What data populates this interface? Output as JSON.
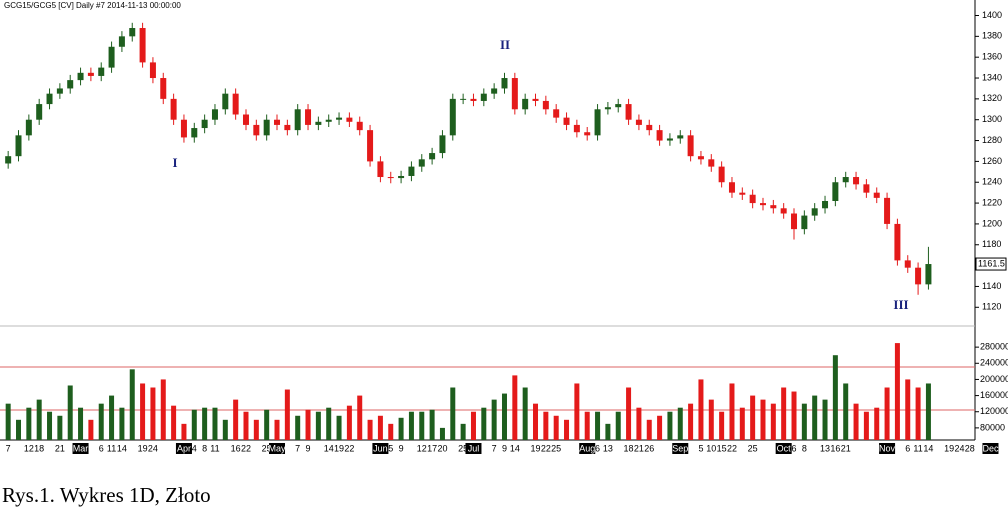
{
  "chart_data": {
    "type": "candlestick",
    "title": "GCG15/GCG5 [CV]  Daily  #7 2014-11-13 00:00:00",
    "categories": [
      "7",
      null,
      "12",
      "18",
      null,
      "21",
      null,
      "Mar",
      null,
      "6",
      "11",
      "14",
      null,
      "19",
      "24",
      null,
      null,
      "Apr",
      "4",
      "8",
      "11",
      null,
      "16",
      "22",
      null,
      "25",
      "May",
      null,
      "7",
      "9",
      null,
      "14",
      "19",
      "22",
      null,
      null,
      "Jun",
      "5",
      "9",
      null,
      "12",
      "17",
      "20",
      null,
      "25",
      "Jul",
      null,
      "7",
      "9",
      "14",
      null,
      "19",
      "22",
      "25",
      null,
      null,
      "Aug",
      "6",
      "13",
      null,
      "18",
      "21",
      "26",
      null,
      null,
      "Sep",
      null,
      "5",
      "10",
      "15",
      "22",
      null,
      "25",
      null,
      null,
      "Oct",
      "6",
      "8",
      null,
      "13",
      "16",
      "21",
      null,
      null,
      null,
      "Nov",
      null,
      "6",
      "11",
      "14",
      null,
      "19",
      "24",
      "28",
      null,
      "Dec"
    ],
    "open": [
      1258,
      1265,
      1285,
      1300,
      1315,
      1325,
      1330,
      1338,
      1345,
      1342,
      1350,
      1370,
      1380,
      1388,
      1355,
      1340,
      1320,
      1300,
      1283,
      1292,
      1300,
      1310,
      1325,
      1305,
      1295,
      1285,
      1300,
      1295,
      1290,
      1310,
      1295,
      1298,
      1300,
      1302,
      1298,
      1290,
      1260,
      1245,
      1244,
      1246,
      1255,
      1262,
      1268,
      1285,
      1320,
      1320,
      1318,
      1325,
      1330,
      1340,
      1310,
      1320,
      1318,
      1310,
      1302,
      1295,
      1288,
      1285,
      1310,
      1312,
      1315,
      1300,
      1295,
      1290,
      1280,
      1282,
      1285,
      1265,
      1262,
      1255,
      1240,
      1230,
      1228,
      1220,
      1218,
      1215,
      1210,
      1195,
      1208,
      1215,
      1222,
      1240,
      1245,
      1238,
      1230,
      1225,
      1200,
      1165,
      1158,
      1142,
      null,
      null,
      null,
      null,
      null,
      null
    ],
    "high": [
      1270,
      1290,
      1305,
      1320,
      1330,
      1335,
      1343,
      1350,
      1350,
      1355,
      1375,
      1385,
      1393,
      1393,
      1360,
      1345,
      1325,
      1305,
      1297,
      1305,
      1315,
      1330,
      1330,
      1310,
      1300,
      1305,
      1305,
      1300,
      1315,
      1315,
      1303,
      1305,
      1307,
      1307,
      1303,
      1295,
      1265,
      1250,
      1251,
      1260,
      1267,
      1273,
      1290,
      1325,
      1325,
      1325,
      1330,
      1335,
      1345,
      1345,
      1325,
      1325,
      1323,
      1315,
      1307,
      1300,
      1293,
      1315,
      1317,
      1320,
      1320,
      1305,
      1300,
      1295,
      1287,
      1290,
      1290,
      1270,
      1267,
      1260,
      1245,
      1235,
      1233,
      1225,
      1223,
      1220,
      1215,
      1213,
      1220,
      1227,
      1245,
      1250,
      1250,
      1243,
      1235,
      1230,
      1205,
      1170,
      1163,
      1178,
      null,
      null,
      null,
      null,
      null,
      null
    ],
    "low": [
      1253,
      1260,
      1280,
      1295,
      1310,
      1320,
      1325,
      1333,
      1337,
      1337,
      1345,
      1365,
      1375,
      1350,
      1335,
      1315,
      1295,
      1278,
      1278,
      1287,
      1295,
      1305,
      1300,
      1290,
      1280,
      1280,
      1290,
      1285,
      1285,
      1290,
      1290,
      1293,
      1295,
      1293,
      1285,
      1255,
      1240,
      1239,
      1239,
      1241,
      1250,
      1257,
      1263,
      1280,
      1315,
      1313,
      1313,
      1320,
      1325,
      1305,
      1305,
      1313,
      1305,
      1297,
      1290,
      1283,
      1280,
      1280,
      1305,
      1307,
      1295,
      1290,
      1285,
      1275,
      1275,
      1277,
      1260,
      1257,
      1250,
      1235,
      1225,
      1223,
      1215,
      1213,
      1210,
      1205,
      1185,
      1190,
      1203,
      1210,
      1217,
      1235,
      1233,
      1225,
      1220,
      1195,
      1160,
      1153,
      1132,
      1137,
      null,
      null,
      null,
      null,
      null,
      null
    ],
    "close": [
      1265,
      1285,
      1300,
      1315,
      1325,
      1330,
      1338,
      1345,
      1342,
      1350,
      1370,
      1380,
      1388,
      1355,
      1340,
      1320,
      1300,
      1283,
      1292,
      1300,
      1310,
      1325,
      1305,
      1295,
      1285,
      1300,
      1295,
      1290,
      1310,
      1295,
      1298,
      1300,
      1302,
      1298,
      1290,
      1260,
      1245,
      1244,
      1246,
      1255,
      1262,
      1268,
      1285,
      1320,
      1320,
      1318,
      1325,
      1330,
      1340,
      1310,
      1320,
      1318,
      1310,
      1302,
      1295,
      1288,
      1285,
      1310,
      1312,
      1315,
      1300,
      1295,
      1290,
      1280,
      1282,
      1285,
      1265,
      1262,
      1255,
      1240,
      1230,
      1228,
      1220,
      1218,
      1215,
      1210,
      1195,
      1208,
      1215,
      1222,
      1240,
      1245,
      1238,
      1230,
      1225,
      1200,
      1165,
      1158,
      1142,
      1161.5,
      null,
      null,
      null,
      null,
      null,
      null
    ],
    "volume": [
      140000,
      100000,
      130000,
      150000,
      120000,
      110000,
      185000,
      130000,
      100000,
      140000,
      160000,
      130000,
      225000,
      190000,
      180000,
      200000,
      135000,
      90000,
      125000,
      130000,
      130000,
      100000,
      150000,
      120000,
      100000,
      125000,
      100000,
      175000,
      110000,
      125000,
      120000,
      130000,
      110000,
      135000,
      160000,
      100000,
      110000,
      90000,
      105000,
      120000,
      120000,
      125000,
      80000,
      180000,
      90000,
      120000,
      130000,
      150000,
      165000,
      210000,
      180000,
      140000,
      120000,
      110000,
      100000,
      190000,
      120000,
      120000,
      90000,
      120000,
      180000,
      130000,
      100000,
      110000,
      120000,
      130000,
      140000,
      200000,
      150000,
      120000,
      190000,
      130000,
      160000,
      150000,
      140000,
      180000,
      170000,
      140000,
      160000,
      150000,
      260000,
      190000,
      140000,
      120000,
      130000,
      180000,
      290000,
      200000,
      180000,
      190000,
      null,
      null,
      null,
      null,
      null,
      null
    ],
    "up_color": "#1e5e1e",
    "down_color": "#e41a1a",
    "ylim": [
      1103,
      1412
    ],
    "yticks": [
      1120,
      1140,
      1160,
      1180,
      1200,
      1220,
      1240,
      1260,
      1280,
      1300,
      1320,
      1340,
      1360,
      1380,
      1400
    ],
    "volume_ylim": [
      50000,
      315000
    ],
    "volume_yticks": [
      80000,
      120000,
      160000,
      200000,
      240000,
      280000
    ],
    "annotations": [
      "I",
      "II",
      "III"
    ]
  },
  "caption": "Rys.1. Wykres 1D, Złoto"
}
